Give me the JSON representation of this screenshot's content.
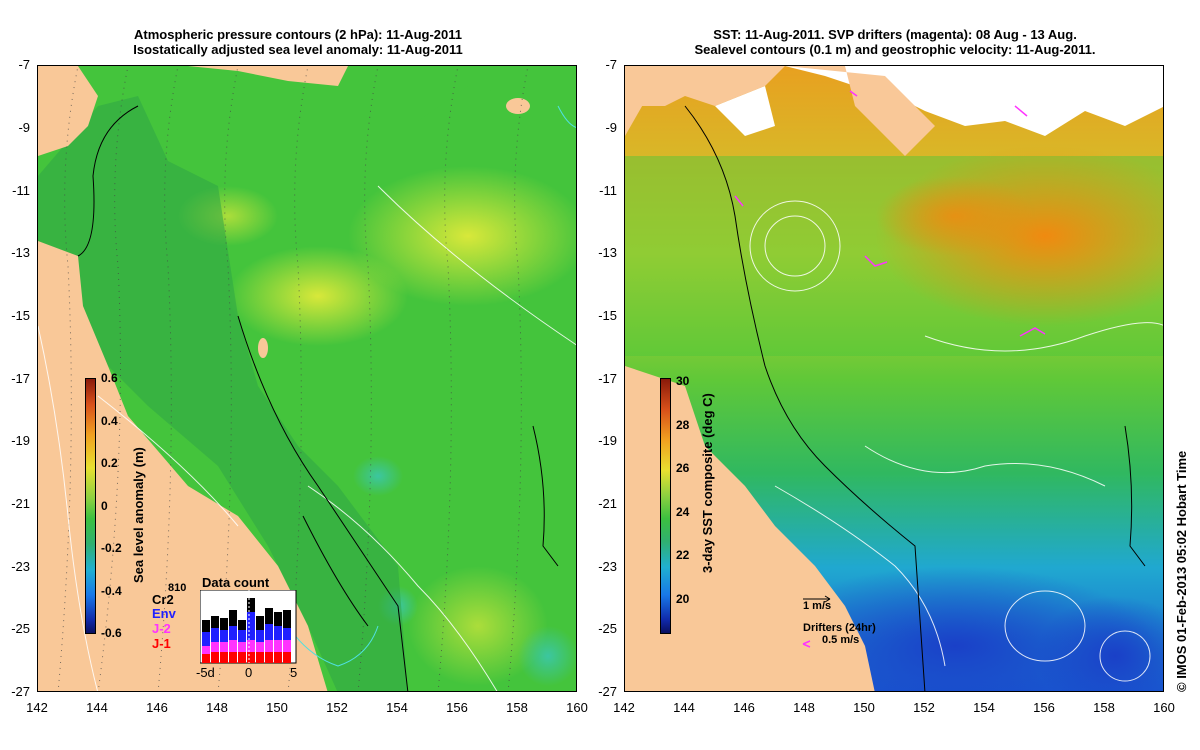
{
  "left_panel": {
    "title_line1": "Atmospheric pressure contours (2 hPa): 11-Aug-2011",
    "title_line2": "Isostatically adjusted sea level anomaly: 11-Aug-2011",
    "colorbar_label": "Sea level anomaly (m)",
    "colorbar_ticks": [
      "0.6",
      "0.4",
      "0.2",
      "0",
      "-0.2",
      "-0.4",
      "-0.6"
    ],
    "inset": {
      "title": "Data count",
      "count": "810",
      "legend": [
        {
          "label": "Cr2",
          "color": "#000000"
        },
        {
          "label": "Env",
          "color": "#2020ff"
        },
        {
          "label": "J-2",
          "color": "#ff33ff"
        },
        {
          "label": "J-1",
          "color": "#ff0000"
        }
      ],
      "x_ticks": [
        "-5d",
        "0",
        "5"
      ]
    }
  },
  "right_panel": {
    "title_line1": "SST: 11-Aug-2011. SVP drifters (magenta): 08 Aug - 13 Aug.",
    "title_line2": "Sealevel contours (0.1 m) and geostrophic velocity: 11-Aug-2011.",
    "colorbar_label": "3-day SST composite (deg C)",
    "colorbar_ticks": [
      "30",
      "28",
      "26",
      "24",
      "22",
      "20"
    ],
    "velocity_scale_label": "1 m/s",
    "drifters_label": "Drifters (24hr)",
    "drifter_scale_label": "0.5 m/s"
  },
  "axes": {
    "y_ticks": [
      "-7",
      "-9",
      "-11",
      "-13",
      "-15",
      "-17",
      "-19",
      "-21",
      "-23",
      "-25",
      "-27"
    ],
    "x_ticks": [
      "142",
      "144",
      "146",
      "148",
      "150",
      "152",
      "154",
      "156",
      "158",
      "160"
    ]
  },
  "credit": "© IMOS 01-Feb-2013 05:02 Hobart Time",
  "colors": {
    "land": "#f9c898",
    "ocean_green": "#3ec43a",
    "ocean_yellow": "#c8e63a",
    "sst_orange": "#f09a1a",
    "sst_blue": "#2a7ae0"
  }
}
